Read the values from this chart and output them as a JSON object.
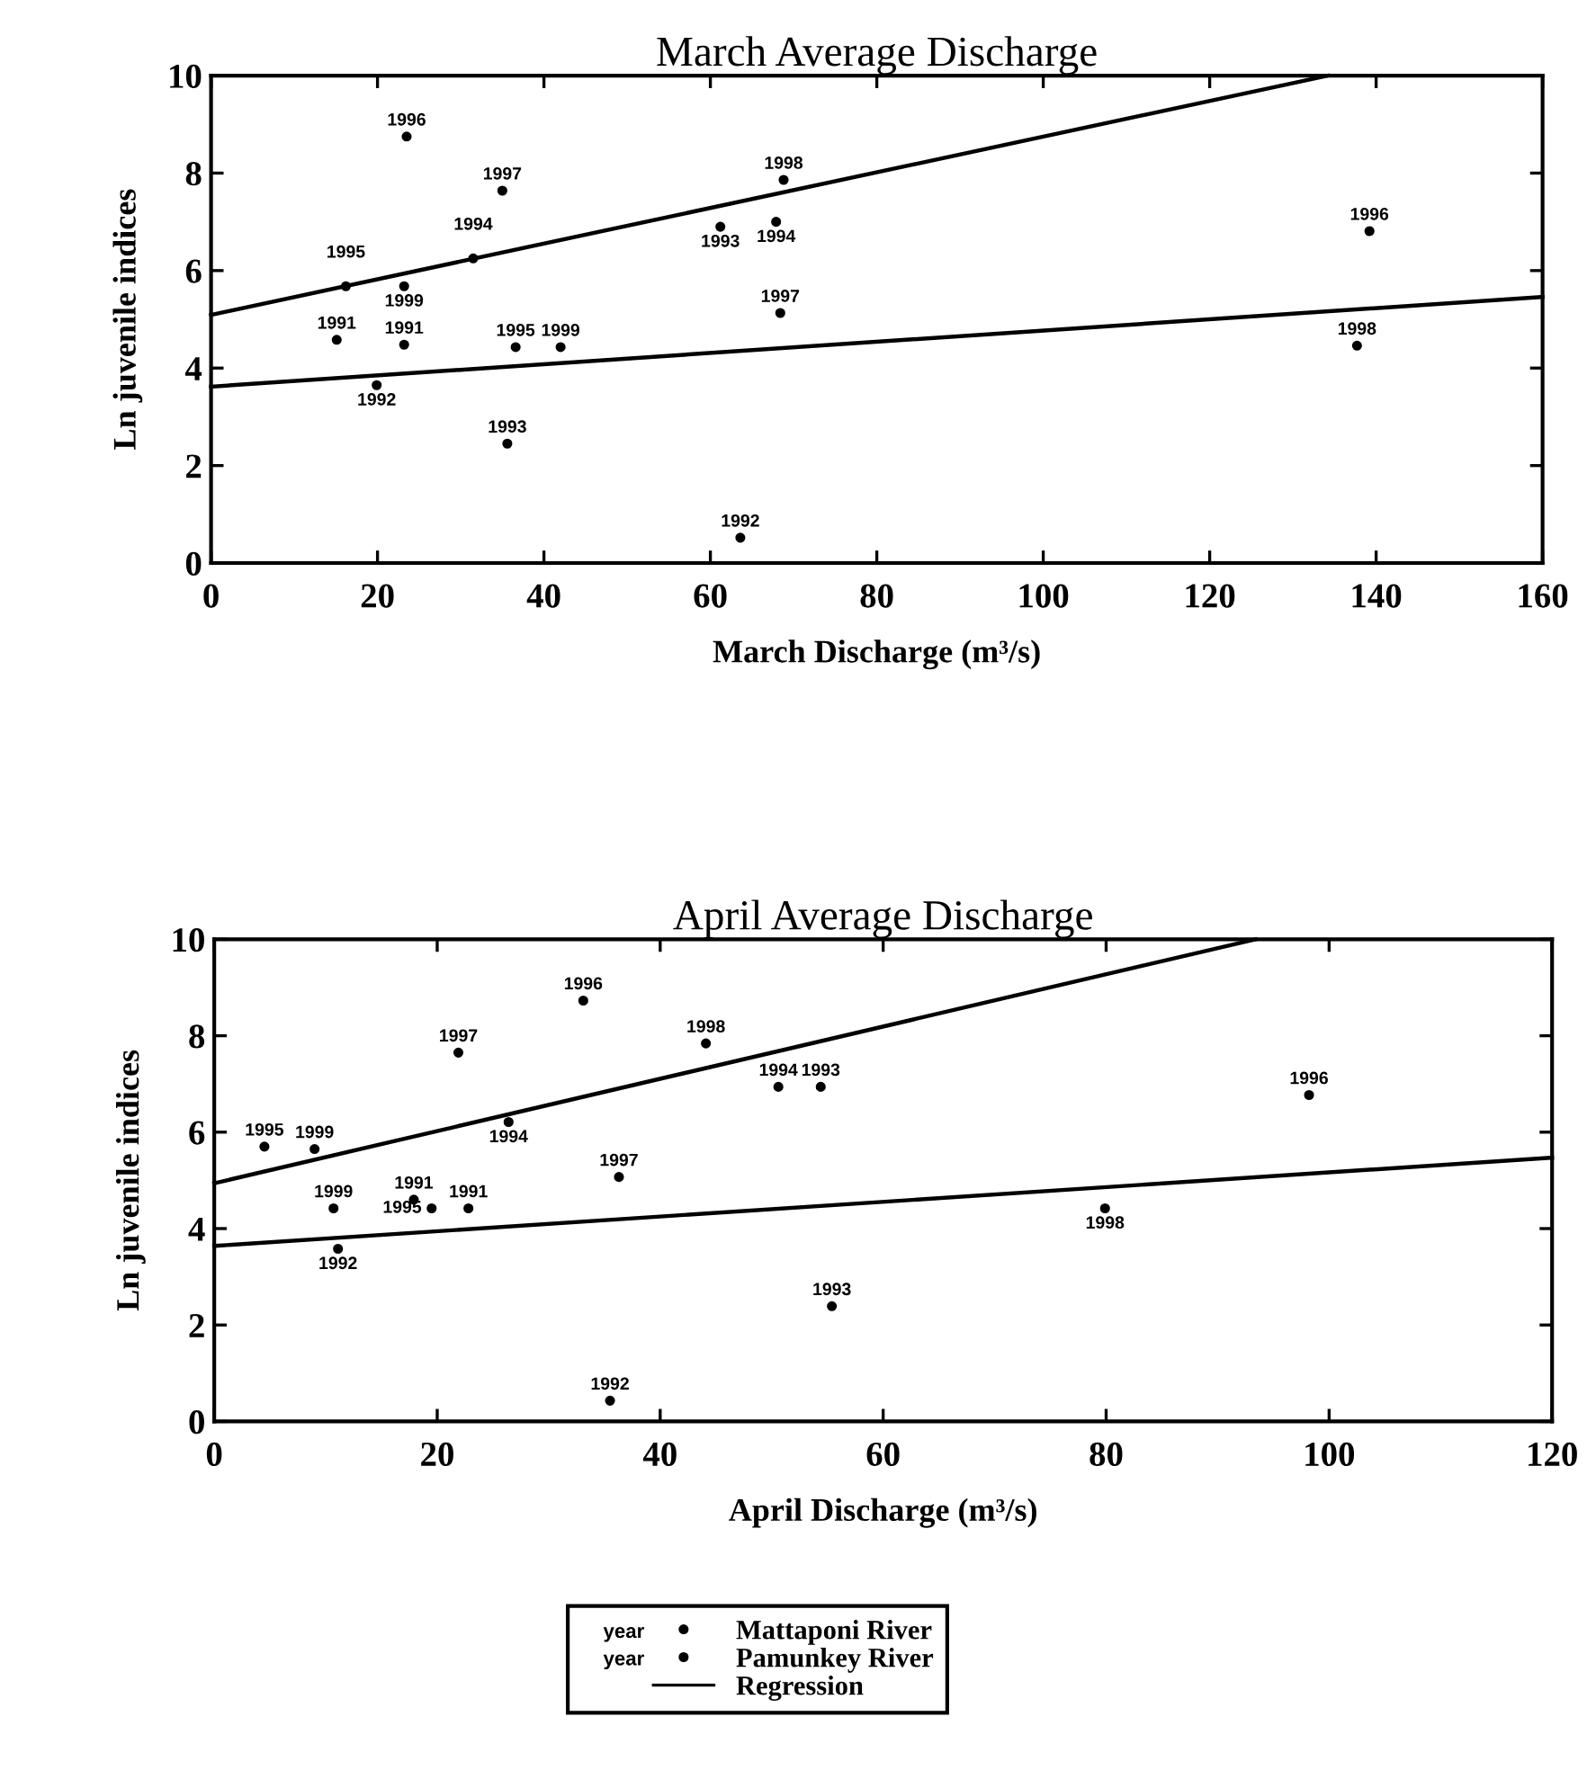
{
  "chart_data": [
    {
      "type": "scatter",
      "title": "March Average Discharge",
      "xlabel": "March Discharge (m³/s)",
      "ylabel": "Ln juvenile indices",
      "xlim": [
        0,
        160
      ],
      "ylim": [
        0,
        10
      ],
      "xticks": [
        0,
        20,
        40,
        60,
        80,
        100,
        120,
        140,
        160
      ],
      "yticks": [
        0,
        2,
        4,
        6,
        8,
        10
      ],
      "grid": false,
      "series": [
        {
          "marker": "circle",
          "color": "#000000",
          "x": [
            15.1,
            19.9,
            35.6,
            31.5,
            16.2,
            23.5,
            35.0,
            68.8,
            23.2
          ],
          "values": [
            4.58,
            3.65,
            2.45,
            6.25,
            5.68,
            8.75,
            7.64,
            7.86,
            5.68
          ]
        },
        {
          "marker": "circle",
          "color": "#000000",
          "x": [
            23.2,
            63.6,
            61.2,
            67.9,
            36.6,
            139.2,
            68.4,
            137.7,
            42.0
          ],
          "values": [
            4.48,
            0.52,
            6.9,
            7.0,
            4.43,
            6.81,
            5.13,
            4.46,
            4.43
          ]
        },
        {
          "type": "line",
          "color": "#000000",
          "x": [
            0,
            134.2
          ],
          "values": [
            5.09,
            10
          ]
        },
        {
          "type": "line",
          "color": "#000000",
          "x": [
            0,
            160
          ],
          "values": [
            3.62,
            5.46
          ]
        }
      ],
      "annotations": [
        {
          "text": "1991",
          "x": 15.1,
          "y": 4.58
        },
        {
          "text": "1992",
          "x": 19.9,
          "y": 3.65
        },
        {
          "text": "1993",
          "x": 35.6,
          "y": 2.45
        },
        {
          "text": "1994",
          "x": 31.5,
          "y": 6.25
        },
        {
          "text": "1995",
          "x": 16.2,
          "y": 5.68
        },
        {
          "text": "1996",
          "x": 23.5,
          "y": 8.75
        },
        {
          "text": "1997",
          "x": 35.0,
          "y": 7.64
        },
        {
          "text": "1998",
          "x": 68.8,
          "y": 7.86
        },
        {
          "text": "1999",
          "x": 23.2,
          "y": 5.68
        },
        {
          "text": "1991",
          "x": 23.2,
          "y": 4.48
        },
        {
          "text": "1992",
          "x": 63.6,
          "y": 0.52
        },
        {
          "text": "1993",
          "x": 61.2,
          "y": 6.9
        },
        {
          "text": "1994",
          "x": 67.9,
          "y": 7.0
        },
        {
          "text": "1995",
          "x": 36.6,
          "y": 4.43
        },
        {
          "text": "1996",
          "x": 139.2,
          "y": 6.81
        },
        {
          "text": "1997",
          "x": 68.4,
          "y": 5.13
        },
        {
          "text": "1998",
          "x": 137.7,
          "y": 4.46
        },
        {
          "text": "1999",
          "x": 42.0,
          "y": 4.43
        }
      ]
    },
    {
      "type": "scatter",
      "title": "April Average Discharge",
      "xlabel": "April Discharge (m³/s)",
      "ylabel": "Ln juvenile indices",
      "xlim": [
        0,
        120
      ],
      "ylim": [
        0,
        10
      ],
      "xticks": [
        0,
        20,
        40,
        60,
        80,
        100,
        120
      ],
      "yticks": [
        0,
        2,
        4,
        6,
        8,
        10
      ],
      "grid": false,
      "legend": "bottom",
      "series": [
        {
          "name": "Mattaponi River",
          "marker": "circle",
          "color": "#000000",
          "x": [
            17.9,
            11.1,
            55.4,
            26.4,
            4.5,
            33.1,
            21.9,
            44.1,
            9.0
          ],
          "values": [
            4.6,
            3.58,
            2.39,
            6.21,
            5.7,
            8.73,
            7.65,
            7.84,
            5.65
          ]
        },
        {
          "name": "Pamunkey River",
          "marker": "circle",
          "color": "#000000",
          "x": [
            22.8,
            35.5,
            54.4,
            50.6,
            19.5,
            98.2,
            36.3,
            79.9,
            10.7
          ],
          "values": [
            4.42,
            0.43,
            6.94,
            6.94,
            4.42,
            6.77,
            5.07,
            4.42,
            4.42
          ]
        },
        {
          "name": "Regression",
          "type": "line",
          "color": "#000000",
          "x": [
            0,
            93.4
          ],
          "values": [
            4.94,
            10
          ]
        },
        {
          "type": "line",
          "color": "#000000",
          "x": [
            0,
            120
          ],
          "values": [
            3.64,
            5.47
          ]
        }
      ],
      "annotations": [
        "year",
        {
          "text": "1991",
          "x": 17.9,
          "y": 4.6
        },
        {
          "text": "1992",
          "x": 11.1,
          "y": 3.58
        },
        {
          "text": "1993",
          "x": 55.4,
          "y": 2.39
        },
        {
          "text": "1994",
          "x": 26.4,
          "y": 6.21
        },
        {
          "text": "1995",
          "x": 4.5,
          "y": 5.7
        },
        {
          "text": "1996",
          "x": 33.1,
          "y": 8.73
        },
        {
          "text": "1997",
          "x": 21.9,
          "y": 7.65
        },
        {
          "text": "1998",
          "x": 44.1,
          "y": 7.84
        },
        {
          "text": "1999",
          "x": 9.0,
          "y": 5.65
        },
        {
          "text": "1991",
          "x": 22.8,
          "y": 4.42
        },
        {
          "text": "1992",
          "x": 35.5,
          "y": 0.43
        },
        {
          "text": "1993",
          "x": 54.4,
          "y": 6.94
        },
        {
          "text": "1994",
          "x": 50.6,
          "y": 6.94
        },
        {
          "text": "1995",
          "x": 19.5,
          "y": 4.42
        },
        {
          "text": "1996",
          "x": 98.2,
          "y": 6.77
        },
        {
          "text": "1997",
          "x": 36.3,
          "y": 5.07
        },
        {
          "text": "1998",
          "x": 79.9,
          "y": 4.42
        },
        {
          "text": "1999",
          "x": 10.7,
          "y": 4.42
        }
      ]
    }
  ]
}
